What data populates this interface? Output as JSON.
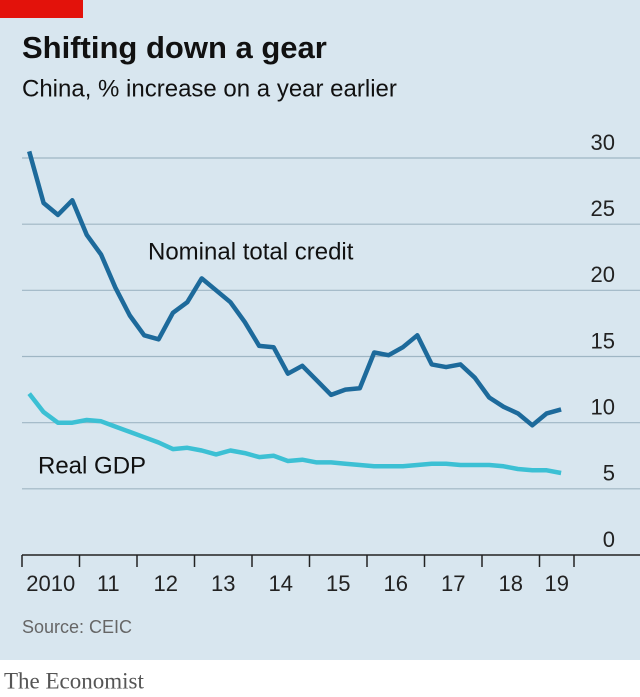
{
  "chart_data": {
    "type": "line",
    "title": "Shifting down a gear",
    "subtitle": "China, % increase on a year earlier",
    "source": "Source: CEIC",
    "x": [
      2010.125,
      2010.375,
      2010.625,
      2010.875,
      2011.125,
      2011.375,
      2011.625,
      2011.875,
      2012.125,
      2012.375,
      2012.625,
      2012.875,
      2013.125,
      2013.375,
      2013.625,
      2013.875,
      2014.125,
      2014.375,
      2014.625,
      2014.875,
      2015.125,
      2015.375,
      2015.625,
      2015.875,
      2016.125,
      2016.375,
      2016.625,
      2016.875,
      2017.125,
      2017.375,
      2017.625,
      2017.875,
      2018.125,
      2018.375,
      2018.625,
      2018.875,
      2019.125,
      2019.375
    ],
    "series": [
      {
        "name": "Nominal total credit",
        "color": "#1d6a9b",
        "values": [
          30.5,
          26.6,
          25.7,
          26.8,
          24.2,
          22.7,
          20.2,
          18.1,
          16.6,
          16.3,
          18.3,
          19.1,
          20.9,
          20.0,
          19.1,
          17.6,
          15.8,
          15.7,
          13.7,
          14.3,
          13.2,
          12.1,
          12.5,
          12.6,
          15.3,
          15.1,
          15.7,
          16.6,
          14.4,
          14.2,
          14.4,
          13.4,
          11.9,
          11.2,
          10.7,
          9.8,
          10.7,
          11.0
        ]
      },
      {
        "name": "Real GDP",
        "color": "#3cc0d4",
        "values": [
          12.2,
          10.8,
          10.0,
          10.0,
          10.2,
          10.1,
          9.7,
          9.3,
          8.9,
          8.5,
          8.0,
          8.1,
          7.9,
          7.6,
          7.9,
          7.7,
          7.4,
          7.5,
          7.1,
          7.2,
          7.0,
          7.0,
          6.9,
          6.8,
          6.7,
          6.7,
          6.7,
          6.8,
          6.9,
          6.9,
          6.8,
          6.8,
          6.8,
          6.7,
          6.5,
          6.4,
          6.4,
          6.2
        ]
      }
    ],
    "xlim": [
      2010,
      2019.6
    ],
    "xticks": [
      {
        "value": 2010,
        "label": "2010"
      },
      {
        "value": 2011,
        "label": "11"
      },
      {
        "value": 2012,
        "label": "12"
      },
      {
        "value": 2013,
        "label": "13"
      },
      {
        "value": 2014,
        "label": "14"
      },
      {
        "value": 2015,
        "label": "15"
      },
      {
        "value": 2016,
        "label": "16"
      },
      {
        "value": 2017,
        "label": "17"
      },
      {
        "value": 2018,
        "label": "18"
      },
      {
        "value": 2019,
        "label": "19"
      }
    ],
    "ylim": [
      0,
      30
    ],
    "yticks": [
      0,
      5,
      10,
      15,
      20,
      25,
      30
    ],
    "grid": true
  },
  "footer": {
    "brand": "The Economist"
  }
}
